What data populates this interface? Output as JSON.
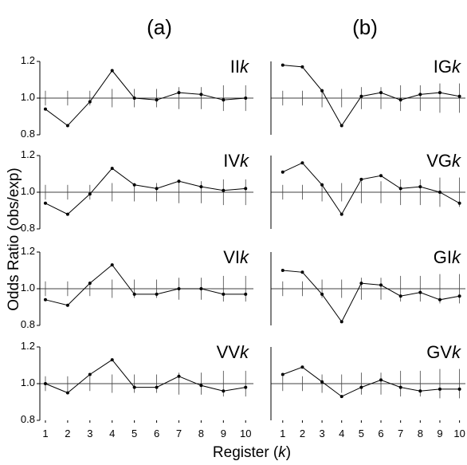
{
  "column_labels": [
    "(a)",
    "(b)"
  ],
  "ylabel": "Odds Ratio (obs/exp)",
  "xlabel": "Register (k)",
  "chart_data": [
    {
      "type": "line",
      "title": "IIk",
      "x": [
        1,
        2,
        3,
        4,
        5,
        6,
        7,
        8,
        9,
        10
      ],
      "values": [
        0.94,
        0.85,
        0.98,
        1.15,
        1.0,
        0.99,
        1.03,
        1.02,
        0.99,
        1.0
      ],
      "errors": [
        0.04,
        0.04,
        0.04,
        0.05,
        0.05,
        0.05,
        0.06,
        0.06,
        0.07,
        0.07
      ],
      "reference": 1,
      "xlim": [
        0.75,
        10.35
      ],
      "ylim": [
        0.8,
        1.2
      ],
      "yticks": [
        0.8,
        {
          "value": 1,
          "label": "1.0"
        },
        1.2
      ]
    },
    {
      "type": "line",
      "title": "IGk",
      "x": [
        1,
        2,
        3,
        4,
        5,
        6,
        7,
        8,
        9,
        10
      ],
      "values": [
        1.18,
        1.17,
        1.04,
        0.85,
        1.01,
        1.03,
        0.99,
        1.02,
        1.03,
        1.01
      ],
      "errors": [
        0.04,
        0.04,
        0.05,
        0.05,
        0.06,
        0.06,
        0.07,
        0.07,
        0.08,
        0.08
      ],
      "reference": 1,
      "xlim": [
        0.4,
        10.3
      ],
      "ylim": [
        0.8,
        1.2
      ]
    },
    {
      "type": "line",
      "title": "IVk",
      "x": [
        1,
        2,
        3,
        4,
        5,
        6,
        7,
        8,
        9,
        10
      ],
      "values": [
        0.94,
        0.88,
        0.99,
        1.13,
        1.04,
        1.02,
        1.06,
        1.03,
        1.01,
        1.02
      ],
      "errors": [
        0.04,
        0.04,
        0.04,
        0.05,
        0.05,
        0.05,
        0.06,
        0.06,
        0.07,
        0.07
      ],
      "reference": 1,
      "xlim": [
        0.75,
        10.35
      ],
      "ylim": [
        0.8,
        1.2
      ],
      "yticks": [
        0.8,
        {
          "value": 1,
          "label": "1.0"
        },
        1.2
      ]
    },
    {
      "type": "line",
      "title": "VGk",
      "x": [
        1,
        2,
        3,
        4,
        5,
        6,
        7,
        8,
        9,
        10
      ],
      "values": [
        1.11,
        1.16,
        1.04,
        0.88,
        1.07,
        1.09,
        1.02,
        1.03,
        1.0,
        0.94
      ],
      "errors": [
        0.04,
        0.04,
        0.05,
        0.05,
        0.06,
        0.06,
        0.07,
        0.07,
        0.08,
        0.08
      ],
      "reference": 1,
      "xlim": [
        0.4,
        10.3
      ],
      "ylim": [
        0.8,
        1.2
      ]
    },
    {
      "type": "line",
      "title": "VIk",
      "x": [
        1,
        2,
        3,
        4,
        5,
        6,
        7,
        8,
        9,
        10
      ],
      "values": [
        0.94,
        0.91,
        1.03,
        1.13,
        0.97,
        0.97,
        1.0,
        1.0,
        0.97,
        0.97
      ],
      "errors": [
        0.04,
        0.04,
        0.04,
        0.05,
        0.05,
        0.05,
        0.06,
        0.06,
        0.07,
        0.07
      ],
      "reference": 1,
      "xlim": [
        0.75,
        10.35
      ],
      "ylim": [
        0.8,
        1.2
      ],
      "yticks": [
        0.8,
        {
          "value": 1,
          "label": "1.0"
        },
        1.2
      ]
    },
    {
      "type": "line",
      "title": "GIk",
      "x": [
        1,
        2,
        3,
        4,
        5,
        6,
        7,
        8,
        9,
        10
      ],
      "values": [
        1.1,
        1.09,
        0.97,
        0.82,
        1.03,
        1.02,
        0.96,
        0.98,
        0.94,
        0.96
      ],
      "errors": [
        0.04,
        0.04,
        0.05,
        0.05,
        0.06,
        0.06,
        0.07,
        0.07,
        0.08,
        0.08
      ],
      "reference": 1,
      "xlim": [
        0.4,
        10.3
      ],
      "ylim": [
        0.8,
        1.2
      ]
    },
    {
      "type": "line",
      "title": "VVk",
      "x": [
        1,
        2,
        3,
        4,
        5,
        6,
        7,
        8,
        9,
        10
      ],
      "values": [
        1.0,
        0.95,
        1.05,
        1.13,
        0.98,
        0.98,
        1.04,
        0.99,
        0.96,
        0.98
      ],
      "errors": [
        0.04,
        0.04,
        0.04,
        0.05,
        0.05,
        0.05,
        0.06,
        0.06,
        0.07,
        0.07
      ],
      "reference": 1,
      "xlim": [
        0.75,
        10.35
      ],
      "ylim": [
        0.8,
        1.2
      ],
      "yticks": [
        0.8,
        {
          "value": 1,
          "label": "1.0"
        },
        1.2
      ],
      "xticks": [
        1,
        2,
        3,
        4,
        5,
        6,
        7,
        8,
        9,
        10
      ]
    },
    {
      "type": "line",
      "title": "GVk",
      "x": [
        1,
        2,
        3,
        4,
        5,
        6,
        7,
        8,
        9,
        10
      ],
      "values": [
        1.05,
        1.09,
        1.01,
        0.93,
        0.98,
        1.02,
        0.98,
        0.96,
        0.97,
        0.97
      ],
      "errors": [
        0.04,
        0.04,
        0.05,
        0.05,
        0.06,
        0.06,
        0.07,
        0.07,
        0.08,
        0.08
      ],
      "reference": 1,
      "xlim": [
        0.4,
        10.3
      ],
      "ylim": [
        0.8,
        1.2
      ],
      "xticks": [
        1,
        2,
        3,
        4,
        5,
        6,
        7,
        8,
        9,
        10
      ]
    }
  ]
}
